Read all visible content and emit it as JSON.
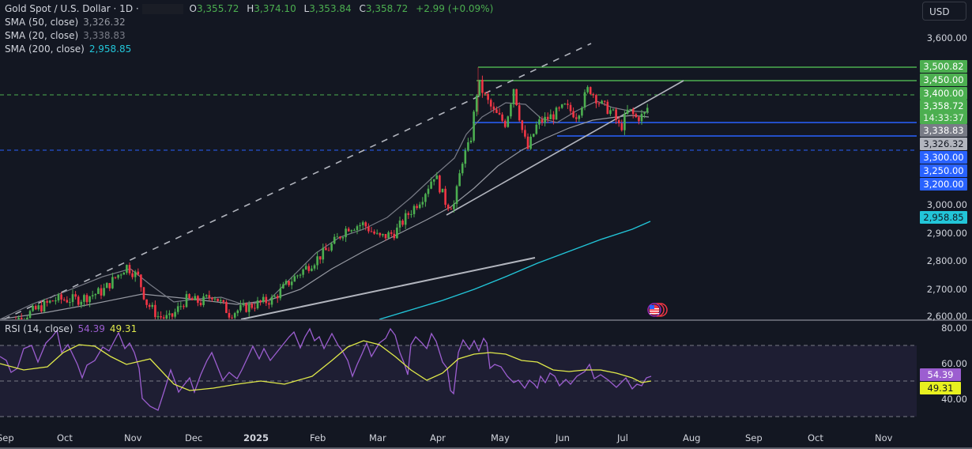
{
  "header": {
    "symbol": "Gold Spot / U.S. Dollar · 1D ·",
    "open_label": "O",
    "open": "3,355.72",
    "high_label": "H",
    "high": "3,374.10",
    "low_label": "L",
    "low": "3,353.84",
    "close_label": "C",
    "close": "3,358.72",
    "change": "+2.99 (+0.09%)"
  },
  "indicators": [
    {
      "label": "SMA (50, close)",
      "value": "3,326.32",
      "color": "#9598a1"
    },
    {
      "label": "SMA (20, close)",
      "value": "3,338.83",
      "color": "#787b86"
    },
    {
      "label": "SMA (200, close)",
      "value": "2,958.85",
      "color": "#22c5d8"
    }
  ],
  "rsi": {
    "label": "RSI (14, close)",
    "value": "54.39",
    "ma_value": "49.31",
    "color": "#9c5ed0",
    "ma_color": "#e0e94a"
  },
  "currency_button": "USD",
  "price_axis": {
    "ticks": [
      "3,600.00",
      "3,000.00",
      "2,900.00",
      "2,800.00",
      "2,700.00",
      "2,600.00"
    ],
    "labels": [
      {
        "text": "3,500.82",
        "bg": "#4caf50",
        "fg": "#ffffff"
      },
      {
        "text": "3,450.00",
        "bg": "#4caf50",
        "fg": "#ffffff"
      },
      {
        "text": "3,400.00",
        "bg": "#4caf50",
        "fg": "#ffffff"
      },
      {
        "text": "3,358.72",
        "bg": "#4caf50",
        "fg": "#ffffff"
      },
      {
        "text": "14:33:37",
        "bg": "#4caf50",
        "fg": "#e8f5e9"
      },
      {
        "text": "3,338.83",
        "bg": "#787b86",
        "fg": "#ffffff"
      },
      {
        "text": "3,326.32",
        "bg": "#b2b5be",
        "fg": "#131722"
      },
      {
        "text": "3,300.00",
        "bg": "#2962ff",
        "fg": "#ffffff"
      },
      {
        "text": "3,250.00",
        "bg": "#2962ff",
        "fg": "#ffffff"
      },
      {
        "text": "3,200.00",
        "bg": "#2962ff",
        "fg": "#ffffff"
      },
      {
        "text": "2,958.85",
        "bg": "#22c5d8",
        "fg": "#131722"
      }
    ]
  },
  "rsi_axis": {
    "ticks": [
      "80.00",
      "60.00",
      "40.00"
    ],
    "labels": [
      {
        "text": "54.39",
        "bg": "#9c5ed0",
        "fg": "#ffffff"
      },
      {
        "text": "49.31",
        "bg": "#e8f020",
        "fg": "#131722"
      }
    ]
  },
  "time_axis": [
    "Sep",
    "Oct",
    "Nov",
    "Dec",
    "2025",
    "Feb",
    "Mar",
    "Apr",
    "May",
    "Jun",
    "Jul",
    "Aug",
    "Sep",
    "Oct",
    "Nov"
  ],
  "chart_data": {
    "type": "candlestick",
    "title": "Gold Spot / U.S. Dollar · 1D",
    "xlabel": "",
    "ylabel": "USD",
    "ylim": [
      2600,
      3650
    ],
    "x_ticks": [
      "Sep",
      "Oct",
      "Nov",
      "Dec",
      "2025",
      "Feb",
      "Mar",
      "Apr",
      "May",
      "Jun",
      "Jul",
      "Aug",
      "Sep",
      "Oct",
      "Nov"
    ],
    "last_ohlc": {
      "open": 3355.72,
      "high": 3374.1,
      "low": 3353.84,
      "close": 3358.72,
      "change": 2.99,
      "change_pct": 0.09
    },
    "approx_close_path": [
      {
        "x": "Sep 2024",
        "y": 2500
      },
      {
        "x": "Oct 2024",
        "y": 2650
      },
      {
        "x": "late Oct 2024",
        "y": 2780
      },
      {
        "x": "Nov 2024",
        "y": 2740
      },
      {
        "x": "mid Nov 2024",
        "y": 2570
      },
      {
        "x": "Dec 2024",
        "y": 2650
      },
      {
        "x": "Jan 2025",
        "y": 2640
      },
      {
        "x": "Feb 2025",
        "y": 2880
      },
      {
        "x": "Mar 2025",
        "y": 2910
      },
      {
        "x": "early Apr 2025",
        "y": 3100
      },
      {
        "x": "Apr 8 2025",
        "y": 2980
      },
      {
        "x": "Apr 22 2025",
        "y": 3500
      },
      {
        "x": "May 2025",
        "y": 3240
      },
      {
        "x": "mid May 2025",
        "y": 3180
      },
      {
        "x": "Jun 2025",
        "y": 3380
      },
      {
        "x": "mid Jun 2025",
        "y": 3430
      },
      {
        "x": "end Jun 2025",
        "y": 3270
      },
      {
        "x": "Jul 2025",
        "y": 3358.72
      }
    ],
    "series": [
      {
        "name": "SMA (20, close)",
        "last": 3338.83
      },
      {
        "name": "SMA (50, close)",
        "last": 3326.32
      },
      {
        "name": "SMA (200, close)",
        "last": 2958.85
      }
    ],
    "horizontal_levels": [
      {
        "value": 3500.82,
        "style": "solid",
        "color": "green"
      },
      {
        "value": 3450.0,
        "style": "solid",
        "color": "green"
      },
      {
        "value": 3400.0,
        "style": "dashed",
        "color": "green"
      },
      {
        "value": 3300.0,
        "style": "solid",
        "color": "blue"
      },
      {
        "value": 3250.0,
        "style": "solid",
        "color": "blue"
      },
      {
        "value": 3200.0,
        "style": "dashed",
        "color": "blue"
      }
    ],
    "rsi_panel": {
      "label": "RSI (14, close)",
      "value": 54.39,
      "ma_value": 49.31,
      "ylim": [
        30,
        80
      ],
      "bands": [
        70,
        50,
        30
      ],
      "ticks": [
        80,
        60,
        40
      ]
    },
    "grid": false,
    "legend_position": "top-left"
  }
}
